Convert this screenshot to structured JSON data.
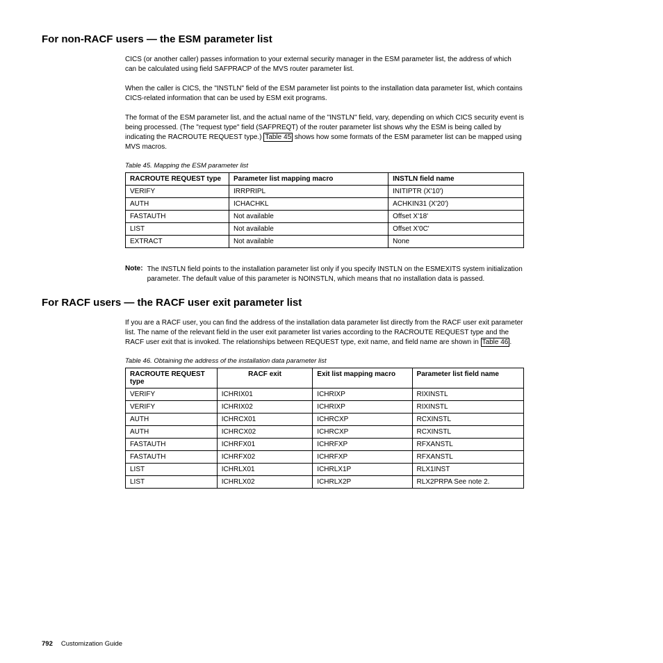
{
  "section1": {
    "heading": "For non-RACF users — the ESM parameter list",
    "paragraphs": [
      "CICS (or another caller) passes information to your external security manager in the ESM parameter list, the address of which can be calculated using field SAFPRACP of the MVS router parameter list.",
      "When the caller is CICS, the \"INSTLN\" field of the ESM parameter list points to the installation data parameter list, which contains CICS-related information that can be used by ESM exit programs."
    ],
    "para3_parts": {
      "before": "The format of the ESM parameter list, and the actual name of the \"INSTLN\" field, vary, depending on which CICS security event is being processed. (The \"request type\" field (SAFPREQT) of the router parameter list shows why the ESM is being called by indicating the RACROUTE REQUEST type.) ",
      "link": "Table 45",
      "after": " shows how some formats of the ESM parameter list can be mapped using MVS macros."
    },
    "table": {
      "caption": "Table 45. Mapping the ESM parameter list",
      "headers": [
        "RACROUTE REQUEST type",
        "Parameter list mapping macro",
        "INSTLN field name"
      ],
      "rows": [
        [
          "VERIFY",
          "IRRPRIPL",
          "INITIPTR (X'10')"
        ],
        [
          "AUTH",
          "ICHACHKL",
          "ACHKIN31 (X'20')"
        ],
        [
          "FASTAUTH",
          "Not available",
          "Offset X'18'"
        ],
        [
          "LIST",
          "Not available",
          "Offset X'0C'"
        ],
        [
          "EXTRACT",
          "Not available",
          "None"
        ]
      ]
    },
    "note": {
      "label": "Note:",
      "text": "The INSTLN field points to the installation parameter list only if you specify INSTLN on the ESMEXITS system initialization parameter. The default value of this parameter is NOINSTLN, which means that no installation data is passed."
    }
  },
  "section2": {
    "heading": "For RACF users — the RACF user exit parameter list",
    "para_parts": {
      "before": "If you are a RACF user, you can find the address of the installation data parameter list directly from the RACF user exit parameter list. The name of the relevant field in the user exit parameter list varies according to the RACROUTE REQUEST type and the RACF user exit that is invoked. The relationships between REQUEST type, exit name, and field name are shown in ",
      "link": "Table 46",
      "after": "."
    },
    "table": {
      "caption": "Table 46. Obtaining the address of the installation data parameter list",
      "headers": [
        "RACROUTE REQUEST type",
        "RACF exit",
        "Exit list mapping macro",
        "Parameter list field name"
      ],
      "rows": [
        [
          "VERIFY",
          "ICHRIX01",
          "ICHRIXP",
          "RIXINSTL"
        ],
        [
          "VERIFY",
          "ICHRIX02",
          "ICHRIXP",
          "RIXINSTL"
        ],
        [
          "AUTH",
          "ICHRCX01",
          "ICHRCXP",
          "RCXINSTL"
        ],
        [
          "AUTH",
          "ICHRCX02",
          "ICHRCXP",
          "RCXINSTL"
        ],
        [
          "FASTAUTH",
          "ICHRFX01",
          "ICHRFXP",
          "RFXANSTL"
        ],
        [
          "FASTAUTH",
          "ICHRFX02",
          "ICHRFXP",
          "RFXANSTL"
        ],
        [
          "LIST",
          "ICHRLX01",
          "ICHRLX1P",
          "RLX1INST"
        ],
        [
          "LIST",
          "ICHRLX02",
          "ICHRLX2P",
          "RLX2PRPA See note 2."
        ]
      ]
    }
  },
  "footer": {
    "page": "792",
    "doc": "Customization Guide"
  }
}
